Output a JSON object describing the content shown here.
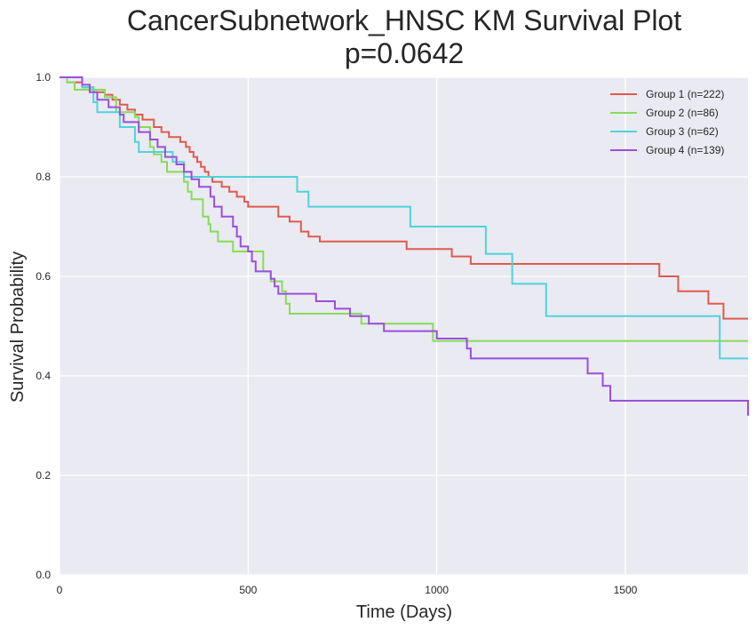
{
  "chart_data": {
    "type": "line",
    "title_line1": "CancerSubnetwork_HNSC KM Survival Plot",
    "title_line2": "p=0.0642",
    "xlabel": "Time (Days)",
    "ylabel": "Survival Probability",
    "xlim": [
      0,
      1825
    ],
    "ylim": [
      0.0,
      1.0
    ],
    "xticks": [
      0,
      500,
      1000,
      1500
    ],
    "yticks": [
      0.0,
      0.2,
      0.4,
      0.6,
      0.8,
      1.0
    ],
    "yticklabels": [
      "0.0",
      "0.2",
      "0.4",
      "0.6",
      "0.8",
      "1.0"
    ],
    "grid": true,
    "legend_position": "top-right",
    "step": "post",
    "series": [
      {
        "name": "Group 1 (n=222)",
        "color": "#e05a4e",
        "x": [
          0,
          20,
          60,
          90,
          120,
          140,
          160,
          180,
          200,
          220,
          250,
          270,
          290,
          320,
          335,
          345,
          355,
          365,
          375,
          385,
          395,
          405,
          430,
          450,
          470,
          490,
          500,
          580,
          610,
          640,
          660,
          690,
          730,
          920,
          1040,
          1090,
          1360,
          1590,
          1640,
          1720,
          1760,
          1825
        ],
        "y": [
          1.0,
          0.99,
          0.98,
          0.97,
          0.965,
          0.955,
          0.945,
          0.935,
          0.925,
          0.915,
          0.9,
          0.89,
          0.88,
          0.87,
          0.86,
          0.85,
          0.84,
          0.83,
          0.82,
          0.81,
          0.8,
          0.79,
          0.78,
          0.77,
          0.76,
          0.75,
          0.74,
          0.72,
          0.71,
          0.69,
          0.68,
          0.67,
          0.67,
          0.655,
          0.64,
          0.625,
          0.625,
          0.6,
          0.57,
          0.545,
          0.515,
          0.515
        ]
      },
      {
        "name": "Group 2 (n=86)",
        "color": "#86dc5a",
        "x": [
          0,
          20,
          40,
          100,
          120,
          150,
          200,
          210,
          240,
          250,
          270,
          285,
          330,
          340,
          350,
          380,
          395,
          400,
          420,
          460,
          480,
          540,
          560,
          590,
          600,
          610,
          800,
          990,
          1825
        ],
        "y": [
          1.0,
          0.99,
          0.975,
          0.975,
          0.96,
          0.93,
          0.92,
          0.9,
          0.86,
          0.845,
          0.83,
          0.81,
          0.79,
          0.77,
          0.755,
          0.72,
          0.705,
          0.69,
          0.67,
          0.65,
          0.65,
          0.61,
          0.59,
          0.57,
          0.545,
          0.525,
          0.505,
          0.47,
          0.47
        ]
      },
      {
        "name": "Group 3 (n=62)",
        "color": "#4fd3dc",
        "x": [
          0,
          60,
          90,
          100,
          160,
          200,
          210,
          300,
          330,
          630,
          660,
          930,
          1130,
          1200,
          1290,
          1750,
          1825
        ],
        "y": [
          1.0,
          0.98,
          0.95,
          0.93,
          0.9,
          0.87,
          0.85,
          0.83,
          0.8,
          0.77,
          0.74,
          0.7,
          0.645,
          0.585,
          0.52,
          0.435,
          0.435
        ]
      },
      {
        "name": "Group 4 (n=139)",
        "color": "#9b4edc",
        "x": [
          0,
          60,
          80,
          100,
          130,
          160,
          170,
          210,
          240,
          260,
          280,
          310,
          330,
          350,
          370,
          400,
          410,
          430,
          460,
          470,
          480,
          500,
          510,
          520,
          560,
          570,
          580,
          680,
          730,
          770,
          820,
          860,
          1000,
          1080,
          1090,
          1400,
          1440,
          1460,
          1825
        ],
        "y": [
          1.0,
          0.985,
          0.97,
          0.955,
          0.94,
          0.925,
          0.91,
          0.89,
          0.875,
          0.86,
          0.84,
          0.825,
          0.81,
          0.795,
          0.78,
          0.76,
          0.74,
          0.72,
          0.7,
          0.68,
          0.66,
          0.65,
          0.63,
          0.61,
          0.595,
          0.58,
          0.565,
          0.55,
          0.535,
          0.52,
          0.505,
          0.49,
          0.475,
          0.455,
          0.435,
          0.405,
          0.38,
          0.35,
          0.32
        ]
      }
    ]
  }
}
